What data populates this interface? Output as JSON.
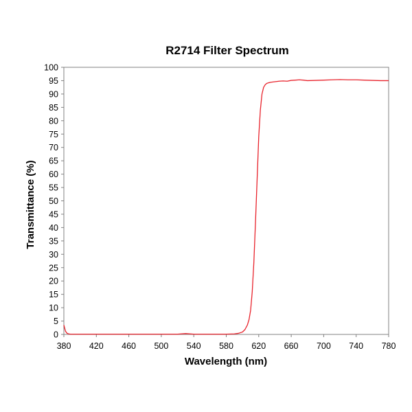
{
  "chart_data": {
    "type": "line",
    "title": "R2714 Filter Spectrum",
    "xlabel": "Wavelength (nm)",
    "ylabel": "Transmittance (%)",
    "xlim": [
      380,
      780
    ],
    "ylim": [
      0,
      100
    ],
    "x_ticks": [
      380,
      420,
      460,
      500,
      540,
      580,
      620,
      660,
      700,
      740,
      780
    ],
    "y_ticks": [
      0,
      5,
      10,
      15,
      20,
      25,
      30,
      35,
      40,
      45,
      50,
      55,
      60,
      65,
      70,
      75,
      80,
      85,
      90,
      95,
      100
    ],
    "grid": true,
    "legend": "none",
    "series_color": "#e8212a",
    "series": [
      {
        "x": [
          380,
          382,
          384,
          386,
          388,
          390,
          400,
          420,
          440,
          460,
          480,
          500,
          520,
          530,
          540,
          560,
          580,
          590,
          595,
          600,
          603,
          606,
          608,
          610,
          612,
          614,
          616,
          618,
          620,
          622,
          624,
          626,
          628,
          630,
          632,
          635,
          640,
          645,
          650,
          655,
          660,
          665,
          670,
          675,
          680,
          690,
          700,
          710,
          720,
          730,
          740,
          750,
          760,
          770,
          780
        ],
        "y": [
          3.5,
          1.2,
          0.4,
          0.2,
          0.1,
          0.1,
          0.1,
          0.1,
          0.1,
          0.1,
          0.1,
          0.1,
          0.1,
          0.3,
          0.1,
          0.1,
          0.1,
          0.2,
          0.4,
          0.9,
          1.8,
          3.5,
          5.5,
          9,
          16,
          27,
          42,
          58,
          74,
          84,
          90,
          92.5,
          93.5,
          94,
          94.2,
          94.4,
          94.6,
          94.8,
          94.9,
          94.8,
          95.1,
          95.2,
          95.3,
          95.2,
          95.0,
          95.1,
          95.2,
          95.3,
          95.4,
          95.3,
          95.3,
          95.2,
          95.1,
          95.0,
          95.0
        ]
      }
    ]
  }
}
